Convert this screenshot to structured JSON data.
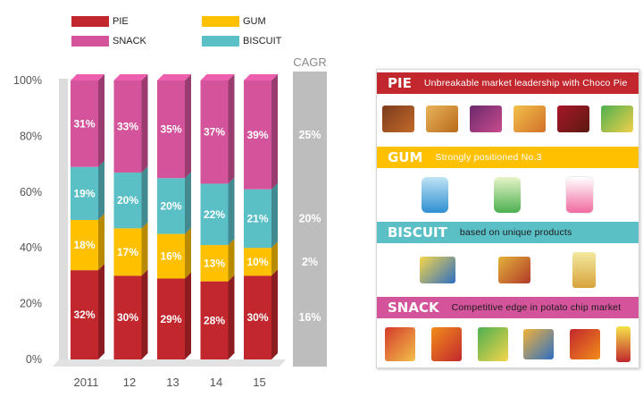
{
  "chart_data": {
    "type": "bar",
    "stacked": true,
    "categories": [
      "2011",
      "12",
      "13",
      "14",
      "15"
    ],
    "y_ticks": [
      "0%",
      "20%",
      "40%",
      "60%",
      "80%",
      "100%"
    ],
    "ylim": [
      0,
      100
    ],
    "series": [
      {
        "name": "PIE",
        "color": "#c1272d",
        "values": [
          32,
          30,
          29,
          28,
          30
        ],
        "labels": [
          "32%",
          "30%",
          "29%",
          "28%",
          "30%"
        ]
      },
      {
        "name": "GUM",
        "color": "#ffc000",
        "values": [
          18,
          17,
          16,
          13,
          10
        ],
        "labels": [
          "18%",
          "17%",
          "16%",
          "13%",
          "10%"
        ]
      },
      {
        "name": "BISCUIT",
        "color": "#5bbfc6",
        "values": [
          19,
          20,
          20,
          22,
          21
        ],
        "labels": [
          "19%",
          "20%",
          "20%",
          "22%",
          "21%"
        ]
      },
      {
        "name": "SNACK",
        "color": "#d4549b",
        "values": [
          31,
          33,
          35,
          37,
          39
        ],
        "labels": [
          "31%",
          "33%",
          "35%",
          "37%",
          "39%"
        ]
      }
    ],
    "cagr": {
      "title": "CAGR",
      "values": [
        {
          "series": "SNACK",
          "label": "25%"
        },
        {
          "series": "BISCUIT",
          "label": "20%"
        },
        {
          "series": "GUM",
          "label": "2%"
        },
        {
          "series": "PIE",
          "label": "16%"
        }
      ]
    }
  },
  "legend": [
    {
      "label": "PIE",
      "color": "#c1272d"
    },
    {
      "label": "SNACK",
      "color": "#d4549b"
    },
    {
      "label": "GUM",
      "color": "#ffc000"
    },
    {
      "label": "BISCUIT",
      "color": "#5bbfc6"
    }
  ],
  "panel": {
    "sections": [
      {
        "title": "PIE",
        "desc": "Unbreakable  market leadership with Choco Pie",
        "color": "#c1272d",
        "desc_color": "#ffffff",
        "products": 6
      },
      {
        "title": "GUM",
        "desc": "Strongly positioned No.3",
        "color": "#ffc000",
        "desc_color": "#ffffff",
        "products": 3
      },
      {
        "title": "BISCUIT",
        "desc": "based on unique products",
        "color": "#5bbfc6",
        "desc_color": "#1a1a1a",
        "products": 3
      },
      {
        "title": "SNACK",
        "desc": "Competitive edge  in potato chip market",
        "color": "#d4549b",
        "desc_color": "#1a1a1a",
        "products": 6
      }
    ]
  }
}
